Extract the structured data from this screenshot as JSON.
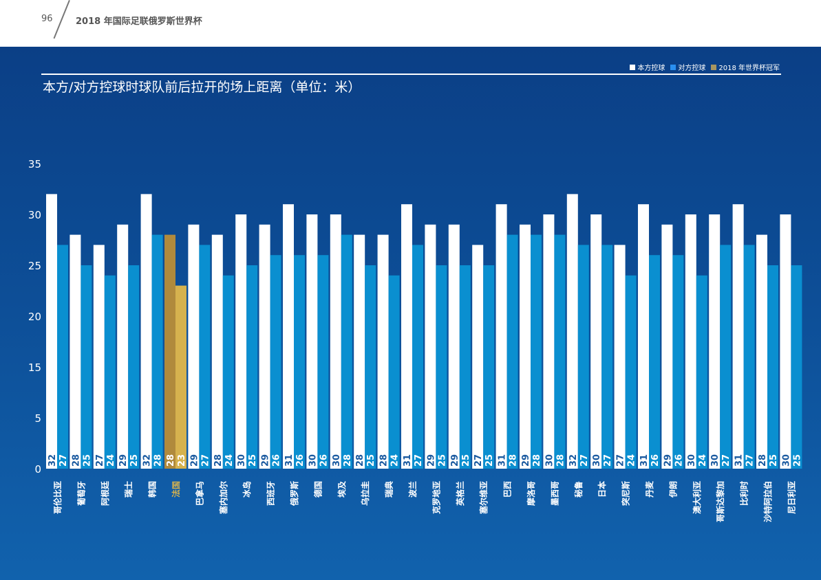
{
  "header": {
    "page_number": "96",
    "title": "2018 年国际足联俄罗斯世界杯"
  },
  "colors": {
    "own": "#ffffff",
    "opp": "#0a8fd0",
    "champ_own": "#b08a3c",
    "champ_opp": "#d6b24e",
    "champ_label": "#d6b24e"
  },
  "chart_data": {
    "type": "bar",
    "title": "本方/对方控球时球队前后拉开的场上距离（单位：米）",
    "legend": [
      "本方控球",
      "对方控球",
      "2018 年世界杯冠军"
    ],
    "legend_placement": "top-right",
    "yticks": [
      0,
      5,
      15,
      20,
      25,
      30,
      35
    ],
    "ylim": [
      0,
      35
    ],
    "champion": "法国",
    "categories": [
      "哥伦比亚",
      "葡萄牙",
      "阿根廷",
      "瑞士",
      "韩国",
      "法国",
      "巴拿马",
      "塞内加尔",
      "冰岛",
      "西班牙",
      "俄罗斯",
      "德国",
      "埃及",
      "乌拉圭",
      "瑞典",
      "波兰",
      "克罗地亚",
      "英格兰",
      "塞尔维亚",
      "巴西",
      "摩洛哥",
      "墨西哥",
      "秘鲁",
      "日本",
      "突尼斯",
      "丹麦",
      "伊朗",
      "澳大利亚",
      "哥斯达黎加",
      "比利时",
      "沙特阿拉伯",
      "尼日利亚"
    ],
    "series": [
      {
        "name": "本方控球",
        "values": [
          32,
          28,
          27,
          29,
          32,
          28,
          29,
          28,
          30,
          29,
          31,
          30,
          30,
          28,
          28,
          31,
          29,
          29,
          27,
          31,
          29,
          30,
          32,
          30,
          27,
          31,
          29,
          30,
          30,
          31,
          28,
          30
        ]
      },
      {
        "name": "对方控球",
        "values": [
          27,
          25,
          24,
          25,
          28,
          23,
          27,
          24,
          25,
          26,
          26,
          26,
          28,
          25,
          24,
          27,
          25,
          25,
          25,
          28,
          28,
          28,
          27,
          27,
          24,
          26,
          26,
          24,
          27,
          27,
          25,
          25
        ]
      }
    ]
  }
}
